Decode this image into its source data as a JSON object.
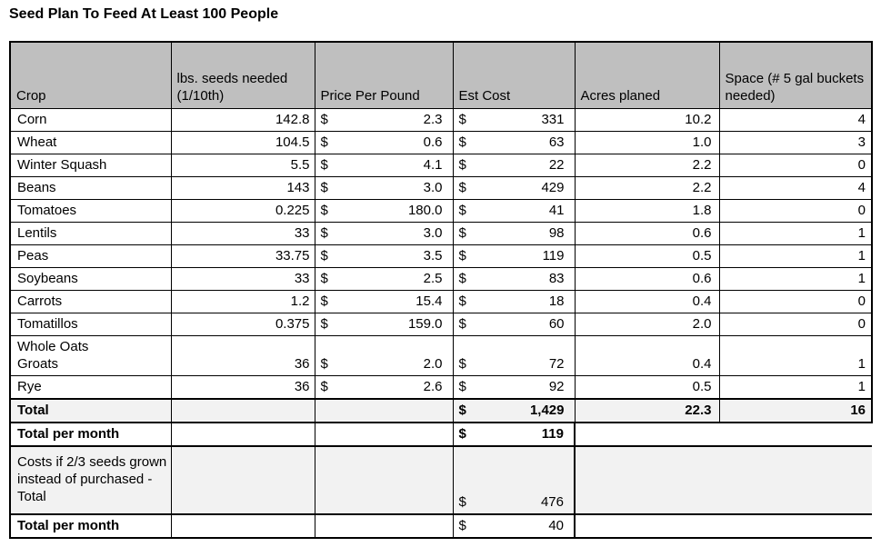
{
  "title": "Seed Plan To Feed At Least 100 People",
  "table": {
    "currency_symbol": "$",
    "headers": [
      "Crop",
      "lbs. seeds needed (1/10th)",
      "Price Per Pound",
      "Est Cost",
      "Acres planed",
      "Space (# 5 gal buckets needed)"
    ],
    "rows": [
      {
        "crop": "Corn",
        "lbs": "142.8",
        "price": "2.3",
        "cost": "331",
        "acres": "10.2",
        "buckets": "4"
      },
      {
        "crop": "Wheat",
        "lbs": "104.5",
        "price": "0.6",
        "cost": "63",
        "acres": "1.0",
        "buckets": "3"
      },
      {
        "crop": "Winter Squash",
        "lbs": "5.5",
        "price": "4.1",
        "cost": "22",
        "acres": "2.2",
        "buckets": "0"
      },
      {
        "crop": "Beans",
        "lbs": "143",
        "price": "3.0",
        "cost": "429",
        "acres": "2.2",
        "buckets": "4"
      },
      {
        "crop": "Tomatoes",
        "lbs": "0.225",
        "price": "180.0",
        "cost": "41",
        "acres": "1.8",
        "buckets": "0"
      },
      {
        "crop": "Lentils",
        "lbs": "33",
        "price": "3.0",
        "cost": "98",
        "acres": "0.6",
        "buckets": "1"
      },
      {
        "crop": "Peas",
        "lbs": "33.75",
        "price": "3.5",
        "cost": "119",
        "acres": "0.5",
        "buckets": "1"
      },
      {
        "crop": "Soybeans",
        "lbs": "33",
        "price": "2.5",
        "cost": "83",
        "acres": "0.6",
        "buckets": "1"
      },
      {
        "crop": "Carrots",
        "lbs": "1.2",
        "price": "15.4",
        "cost": "18",
        "acres": "0.4",
        "buckets": "0"
      },
      {
        "crop": "Tomatillos",
        "lbs": "0.375",
        "price": "159.0",
        "cost": "60",
        "acres": "2.0",
        "buckets": "0"
      },
      {
        "crop": "Whole Oats\nGroats",
        "lbs": "36",
        "price": "2.0",
        "cost": "72",
        "acres": "0.4",
        "buckets": "1"
      },
      {
        "crop": "Rye",
        "lbs": "36",
        "price": "2.6",
        "cost": "92",
        "acres": "0.5",
        "buckets": "1"
      }
    ],
    "total": {
      "label": "Total",
      "cost": "1,429",
      "acres": "22.3",
      "buckets": "16"
    },
    "total_per_month": {
      "label": "Total per month",
      "cost": "119"
    },
    "costs_if_grown": {
      "label": "Costs if 2/3 seeds grown instead of purchased - Total",
      "cost": "476"
    },
    "total_per_month_grown": {
      "label": "Total per month",
      "cost": "40"
    }
  },
  "colors": {
    "header_bg": "#bfbfbf",
    "subtotal_bg": "#f2f2f2",
    "border": "#000000",
    "text": "#000000"
  }
}
